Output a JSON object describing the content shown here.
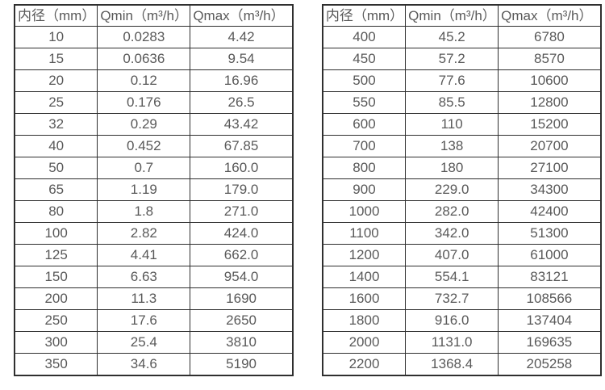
{
  "colors": {
    "border-color": "#2f2f2f",
    "text-color": "#595959",
    "bg-color": "#ffffff"
  },
  "chart_data": [
    {
      "type": "table",
      "title": "",
      "columns": [
        "内径（mm）",
        "Qmin（m³/h）",
        "Qmax（m³/h）"
      ],
      "rows": [
        [
          "10",
          "0.0283",
          "4.42"
        ],
        [
          "15",
          "0.0636",
          "9.54"
        ],
        [
          "20",
          "0.12",
          "16.96"
        ],
        [
          "25",
          "0.176",
          "26.5"
        ],
        [
          "32",
          "0.29",
          "43.42"
        ],
        [
          "40",
          "0.452",
          "67.85"
        ],
        [
          "50",
          "0.7",
          "160.0"
        ],
        [
          "65",
          "1.19",
          "179.0"
        ],
        [
          "80",
          "1.8",
          "271.0"
        ],
        [
          "100",
          "2.82",
          "424.0"
        ],
        [
          "125",
          "4.41",
          "662.0"
        ],
        [
          "150",
          "6.63",
          "954.0"
        ],
        [
          "200",
          "11.3",
          "1690"
        ],
        [
          "250",
          "17.6",
          "2650"
        ],
        [
          "300",
          "25.4",
          "3810"
        ],
        [
          "350",
          "34.6",
          "5190"
        ]
      ]
    },
    {
      "type": "table",
      "title": "",
      "columns": [
        "内径（mm）",
        "Qmin（m³/h）",
        "Qmax（m³/h）"
      ],
      "rows": [
        [
          "400",
          "45.2",
          "6780"
        ],
        [
          "450",
          "57.2",
          "8570"
        ],
        [
          "500",
          "77.6",
          "10600"
        ],
        [
          "550",
          "85.5",
          "12800"
        ],
        [
          "600",
          "110",
          "15200"
        ],
        [
          "700",
          "138",
          "20700"
        ],
        [
          "800",
          "180",
          "27100"
        ],
        [
          "900",
          "229.0",
          "34300"
        ],
        [
          "1000",
          "282.0",
          "42400"
        ],
        [
          "1100",
          "342.0",
          "51300"
        ],
        [
          "1200",
          "407.0",
          "61000"
        ],
        [
          "1400",
          "554.1",
          "83121"
        ],
        [
          "1600",
          "732.7",
          "108566"
        ],
        [
          "1800",
          "916.0",
          "137404"
        ],
        [
          "2000",
          "1131.0",
          "169635"
        ],
        [
          "2200",
          "1368.4",
          "205258"
        ]
      ]
    }
  ]
}
